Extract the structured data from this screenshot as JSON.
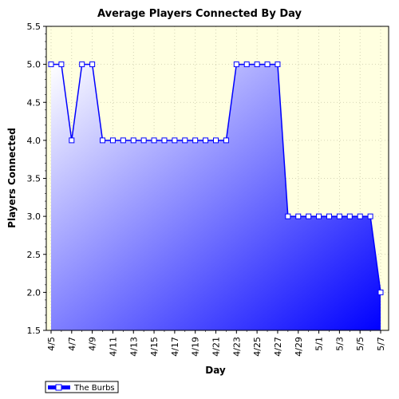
{
  "chart_data": {
    "type": "area",
    "title": "Average Players Connected By Day",
    "xlabel": "Day",
    "ylabel": "Players Connected",
    "ylim": [
      1.5,
      5.5
    ],
    "yticks": [
      "1.5",
      "2.0",
      "2.5",
      "3.0",
      "3.5",
      "4.0",
      "4.5",
      "5.0",
      "5.5"
    ],
    "x": [
      "4/5",
      "4/6",
      "4/7",
      "4/8",
      "4/9",
      "4/10",
      "4/11",
      "4/12",
      "4/13",
      "4/14",
      "4/15",
      "4/16",
      "4/17",
      "4/18",
      "4/19",
      "4/20",
      "4/21",
      "4/22",
      "4/23",
      "4/24",
      "4/25",
      "4/26",
      "4/27",
      "4/28",
      "4/29",
      "4/30",
      "5/1",
      "5/2",
      "5/3",
      "5/4",
      "5/5",
      "5/6",
      "5/7"
    ],
    "xticks": [
      "4/5",
      "4/7",
      "4/9",
      "4/11",
      "4/13",
      "4/15",
      "4/17",
      "4/19",
      "4/21",
      "4/23",
      "4/25",
      "4/27",
      "4/29",
      "5/1",
      "5/3",
      "5/5",
      "5/7"
    ],
    "series": [
      {
        "name": "The Burbs",
        "values": [
          5,
          5,
          4,
          5,
          5,
          4,
          4,
          4,
          4,
          4,
          4,
          4,
          4,
          4,
          4,
          4,
          4,
          4,
          5,
          5,
          5,
          5,
          5,
          3,
          3,
          3,
          3,
          3,
          3,
          3,
          3,
          3,
          2
        ]
      }
    ],
    "grid": true,
    "legend_position": "bottom-left",
    "colors": {
      "line": "#0000ff",
      "fill_start": "#ffffff",
      "fill_end": "#0000ff",
      "plot_background": "#ffffe0",
      "marker_fill": "#ffffff"
    }
  }
}
